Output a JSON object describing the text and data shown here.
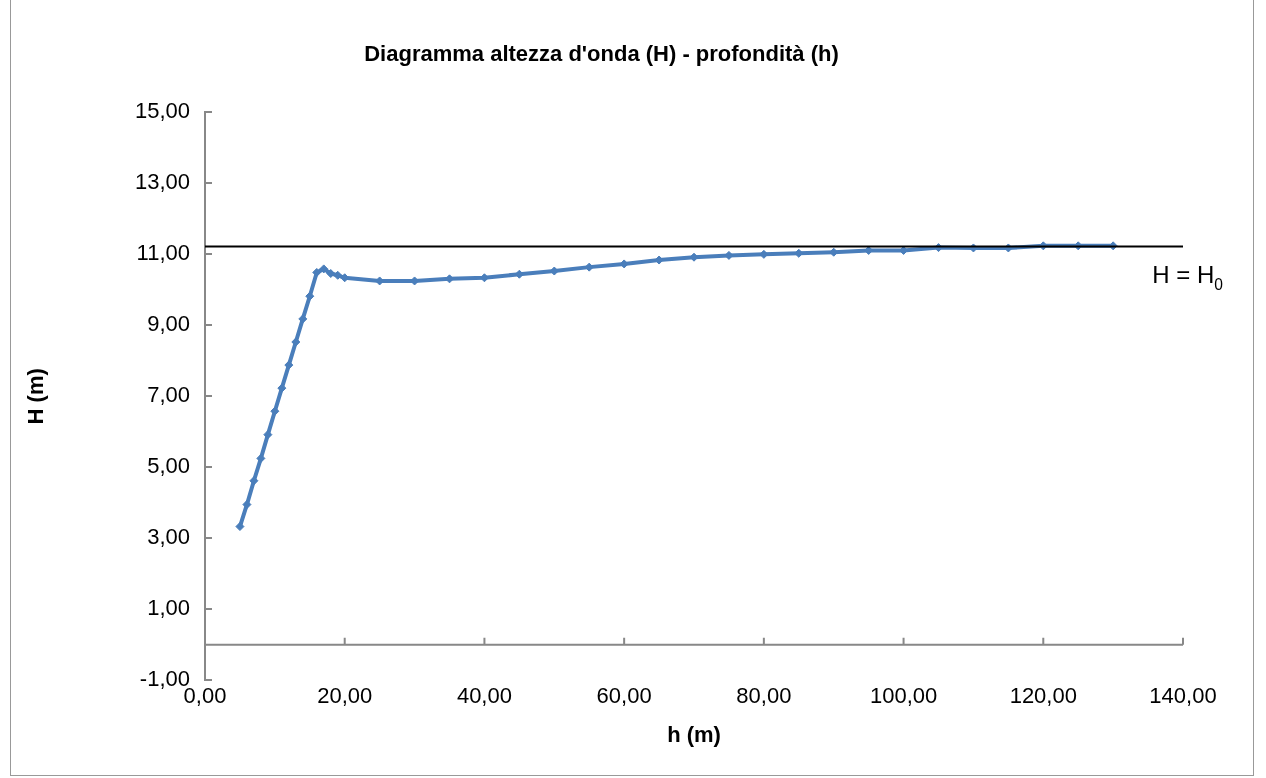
{
  "chart_data": {
    "type": "line",
    "title": "Diagramma altezza d'onda (H) - profondità (h)",
    "xlabel": "h (m)",
    "ylabel": "H (m)",
    "x": [
      5,
      6,
      7,
      8,
      9,
      10,
      11,
      12,
      13,
      14,
      15,
      16,
      17,
      18,
      19,
      20,
      25,
      30,
      35,
      40,
      45,
      50,
      55,
      60,
      65,
      70,
      75,
      80,
      85,
      90,
      95,
      100,
      105,
      110,
      115,
      120,
      125,
      130
    ],
    "series": [
      {
        "color": "#4a7ebb",
        "values": [
          3.33,
          3.95,
          4.62,
          5.25,
          5.92,
          6.58,
          7.23,
          7.88,
          8.53,
          9.18,
          9.82,
          10.49,
          10.59,
          10.46,
          10.41,
          10.34,
          10.25,
          10.25,
          10.31,
          10.34,
          10.44,
          10.53,
          10.64,
          10.73,
          10.84,
          10.92,
          10.97,
          11.0,
          11.03,
          11.06,
          11.11,
          11.11,
          11.19,
          11.18,
          11.18,
          11.24,
          11.24,
          11.24
        ]
      }
    ],
    "xlim": [
      0,
      140
    ],
    "xticks": [
      {
        "value": 0,
        "label": "0,00"
      },
      {
        "value": 20,
        "label": "20,00"
      },
      {
        "value": 40,
        "label": "40,00"
      },
      {
        "value": 60,
        "label": "60,00"
      },
      {
        "value": 80,
        "label": "80,00"
      },
      {
        "value": 100,
        "label": "100,00"
      },
      {
        "value": 120,
        "label": "120,00"
      },
      {
        "value": 140,
        "label": "140,00"
      }
    ],
    "ylim": [
      -1,
      15
    ],
    "yticks": [
      {
        "value": -1,
        "label": "-1,00"
      },
      {
        "value": 1,
        "label": "1,00"
      },
      {
        "value": 3,
        "label": "3,00"
      },
      {
        "value": 5,
        "label": "5,00"
      },
      {
        "value": 7,
        "label": "7,00"
      },
      {
        "value": 9,
        "label": "9,00"
      },
      {
        "value": 11,
        "label": "11,00"
      },
      {
        "value": 13,
        "label": "13,00"
      },
      {
        "value": 15,
        "label": "15,00"
      }
    ],
    "ref_lines": [
      {
        "axis": "y",
        "value": 11.22,
        "label": "H = H$_{0}$",
        "color": "#000000"
      }
    ],
    "marker": "diamond",
    "line_style": "solid",
    "grid": false,
    "legend": false
  }
}
